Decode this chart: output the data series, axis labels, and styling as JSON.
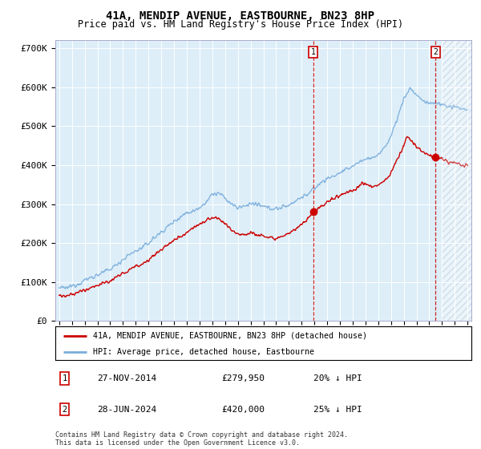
{
  "title": "41A, MENDIP AVENUE, EASTBOURNE, BN23 8HP",
  "subtitle": "Price paid vs. HM Land Registry's House Price Index (HPI)",
  "title_fontsize": 10,
  "subtitle_fontsize": 8.5,
  "ylabel_ticks": [
    "£0",
    "£100K",
    "£200K",
    "£300K",
    "£400K",
    "£500K",
    "£600K",
    "£700K"
  ],
  "ytick_values": [
    0,
    100000,
    200000,
    300000,
    400000,
    500000,
    600000,
    700000
  ],
  "ylim": [
    0,
    720000
  ],
  "xlim_start": 1994.7,
  "xlim_end": 2027.3,
  "xtick_years": [
    1995,
    1996,
    1997,
    1998,
    1999,
    2000,
    2001,
    2002,
    2003,
    2004,
    2005,
    2006,
    2007,
    2008,
    2009,
    2010,
    2011,
    2012,
    2013,
    2014,
    2015,
    2016,
    2017,
    2018,
    2019,
    2020,
    2021,
    2022,
    2023,
    2024,
    2025,
    2026,
    2027
  ],
  "bg_color": "#ddeef8",
  "hatch_start": 2025.0,
  "sale1_x": 2014.9,
  "sale1_y": 279950,
  "sale2_x": 2024.5,
  "sale2_y": 420000,
  "vline_color": "#cc0000",
  "sale_dot_color": "#cc0000",
  "red_line_color": "#cc0000",
  "blue_line_color": "#7aaddc",
  "legend_label1": "41A, MENDIP AVENUE, EASTBOURNE, BN23 8HP (detached house)",
  "legend_label2": "HPI: Average price, detached house, Eastbourne",
  "table_row1": [
    "1",
    "27-NOV-2014",
    "£279,950",
    "20% ↓ HPI"
  ],
  "table_row2": [
    "2",
    "28-JUN-2024",
    "£420,000",
    "25% ↓ HPI"
  ],
  "footer": "Contains HM Land Registry data © Crown copyright and database right 2024.\nThis data is licensed under the Open Government Licence v3.0."
}
